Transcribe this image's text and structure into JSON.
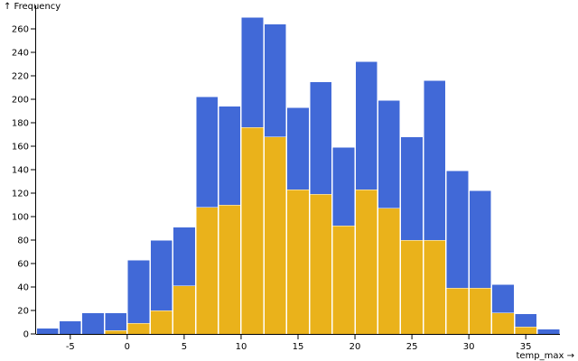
{
  "chart_data": {
    "type": "bar",
    "stacked": true,
    "grid": false,
    "x_bins": [
      [
        -8,
        -6
      ],
      [
        -6,
        -4
      ],
      [
        -4,
        -2
      ],
      [
        -2,
        0
      ],
      [
        0,
        2
      ],
      [
        2,
        4
      ],
      [
        4,
        6
      ],
      [
        6,
        8
      ],
      [
        8,
        10
      ],
      [
        10,
        12
      ],
      [
        12,
        14
      ],
      [
        14,
        16
      ],
      [
        16,
        18
      ],
      [
        18,
        20
      ],
      [
        20,
        22
      ],
      [
        22,
        24
      ],
      [
        24,
        26
      ],
      [
        26,
        28
      ],
      [
        28,
        30
      ],
      [
        30,
        32
      ],
      [
        32,
        34
      ],
      [
        34,
        36
      ],
      [
        36,
        38
      ]
    ],
    "series": [
      {
        "name": "",
        "color": "#eab21b",
        "values": [
          0,
          0,
          0,
          3,
          9,
          20,
          41,
          108,
          110,
          176,
          168,
          123,
          119,
          92,
          123,
          107,
          80,
          80,
          39,
          39,
          18,
          6,
          0
        ]
      },
      {
        "name": "",
        "color": "#4169d7",
        "values": [
          5,
          11,
          18,
          15,
          54,
          60,
          50,
          94,
          84,
          94,
          96,
          70,
          96,
          67,
          109,
          92,
          88,
          136,
          100,
          83,
          24,
          11,
          4
        ]
      }
    ],
    "xlabel": "temp_max →",
    "ylabel": "↑ Frequency",
    "xlim": [
      -8,
      38
    ],
    "ylim": [
      0,
      280
    ],
    "x_ticks": [
      {
        "value": -5,
        "label": "-5"
      },
      {
        "value": 0,
        "label": "0"
      },
      {
        "value": 5,
        "label": "5"
      },
      {
        "value": 10,
        "label": "10"
      },
      {
        "value": 15,
        "label": "15"
      },
      {
        "value": 20,
        "label": "20"
      },
      {
        "value": 25,
        "label": "25"
      },
      {
        "value": 30,
        "label": "30"
      },
      {
        "value": 35,
        "label": "35"
      }
    ],
    "y_ticks": [
      {
        "value": 0,
        "label": "0"
      },
      {
        "value": 20,
        "label": "20"
      },
      {
        "value": 40,
        "label": "40"
      },
      {
        "value": 60,
        "label": "60"
      },
      {
        "value": 80,
        "label": "80"
      },
      {
        "value": 100,
        "label": "100"
      },
      {
        "value": 120,
        "label": "120"
      },
      {
        "value": 140,
        "label": "140"
      },
      {
        "value": 160,
        "label": "160"
      },
      {
        "value": 180,
        "label": "180"
      },
      {
        "value": 200,
        "label": "200"
      },
      {
        "value": 220,
        "label": "220"
      },
      {
        "value": 240,
        "label": "240"
      },
      {
        "value": 260,
        "label": "260"
      }
    ]
  }
}
